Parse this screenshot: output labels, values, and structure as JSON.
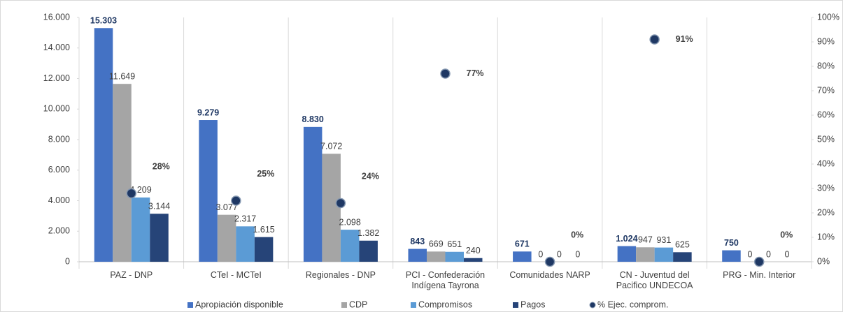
{
  "chart_data": {
    "type": "bar",
    "categories": [
      "PAZ - DNP",
      "CTeI - MCTeI",
      "Regionales - DNP",
      "PCI - Confederación Indígena Tayrona",
      "Comunidades NARP",
      "CN - Juventud del Pacifico UNDECOA",
      "PRG - Min. Interior"
    ],
    "series": [
      {
        "name": "Apropiación disponible",
        "color": "#4472c4",
        "values": [
          15303,
          9279,
          8830,
          843,
          671,
          1024,
          750
        ],
        "value_labels": [
          "15.303",
          "9.279",
          "8.830",
          "843",
          "671",
          "1.024",
          "750"
        ]
      },
      {
        "name": "CDP",
        "color": "#a5a5a5",
        "values": [
          11649,
          3077,
          7072,
          669,
          0,
          947,
          0
        ],
        "value_labels": [
          "11.649",
          "3.077",
          "7.072",
          "669",
          "0",
          "947",
          "0"
        ]
      },
      {
        "name": "Compromisos",
        "color": "#5b9bd5",
        "values": [
          4209,
          2317,
          2098,
          651,
          0,
          931,
          0
        ],
        "value_labels": [
          "4.209",
          "2.317",
          "2.098",
          "651",
          "0",
          "931",
          "0"
        ]
      },
      {
        "name": "Pagos",
        "color": "#264478",
        "values": [
          3144,
          1615,
          1382,
          240,
          0,
          625,
          0
        ],
        "value_labels": [
          "3.144",
          "1.615",
          "1.382",
          "240",
          "0",
          "625",
          "0"
        ]
      },
      {
        "name": "% Ejec. comprom.",
        "type": "scatter",
        "axis": "y2",
        "color": "#1f3864",
        "values": [
          28,
          25,
          24,
          77,
          0,
          91,
          0
        ],
        "value_labels": [
          "28%",
          "25%",
          "24%",
          "77%",
          "0%",
          "91%",
          "0%"
        ]
      }
    ],
    "ylim": [
      0,
      16000
    ],
    "yticks": [
      0,
      {
        "value": 2000,
        "label": "2.000"
      },
      {
        "value": 4000,
        "label": "4.000"
      },
      {
        "value": 6000,
        "label": "6.000"
      },
      {
        "value": 8000,
        "label": "8.000"
      },
      {
        "value": 10000,
        "label": "10.000"
      },
      {
        "value": 12000,
        "label": "12.000"
      },
      {
        "value": 14000,
        "label": "14.000"
      },
      {
        "value": 16000,
        "label": "16.000"
      }
    ],
    "y2lim": [
      0,
      100
    ],
    "y2ticks": [
      {
        "value": 0,
        "label": "0%"
      },
      {
        "value": 10,
        "label": "10%"
      },
      {
        "value": 20,
        "label": "20%"
      },
      {
        "value": 30,
        "label": "30%"
      },
      {
        "value": 40,
        "label": "40%"
      },
      {
        "value": 50,
        "label": "50%"
      },
      {
        "value": 60,
        "label": "60%"
      },
      {
        "value": 70,
        "label": "70%"
      },
      {
        "value": 80,
        "label": "80%"
      },
      {
        "value": 90,
        "label": "90%"
      },
      {
        "value": 100,
        "label": "100%"
      }
    ],
    "legend": "bottom"
  }
}
